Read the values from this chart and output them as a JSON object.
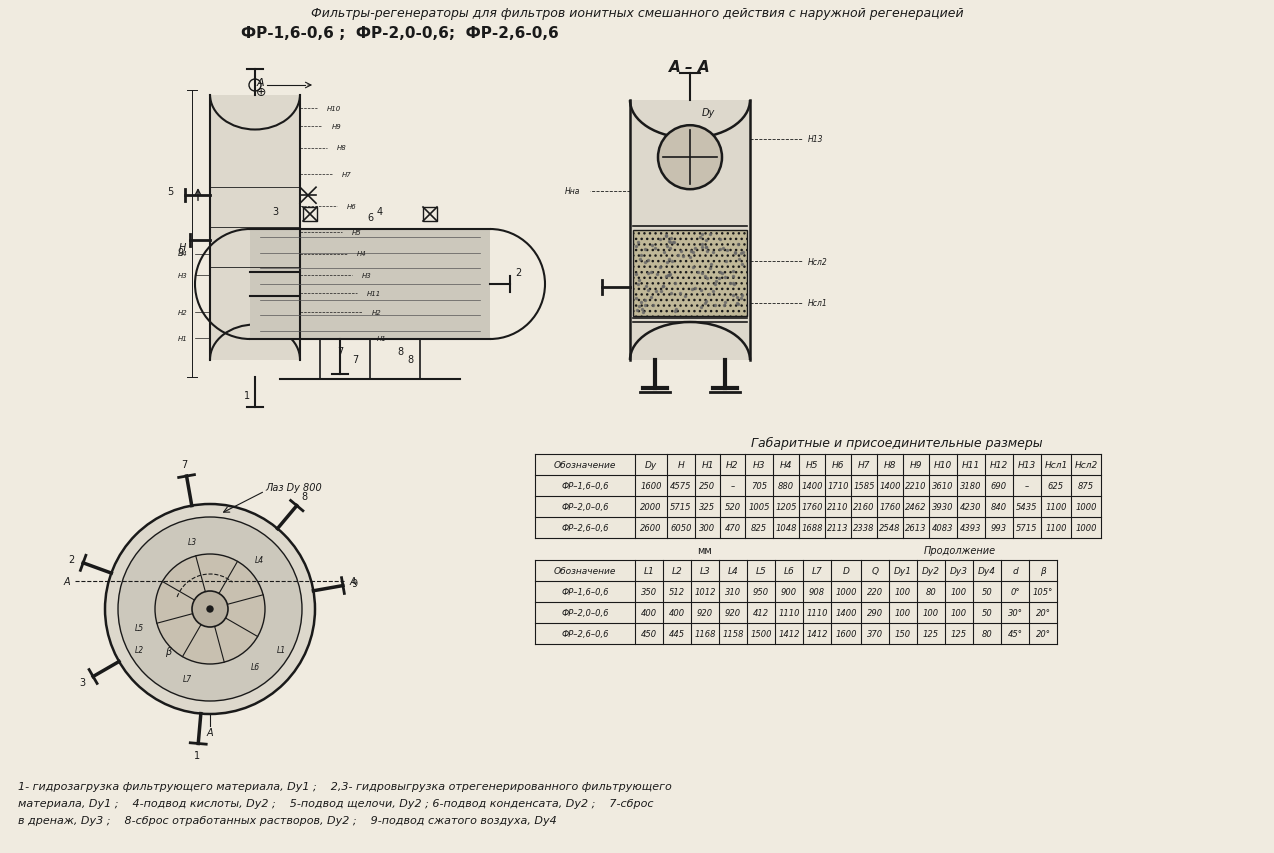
{
  "title_line1": "Фильтры-регенераторы для фильтров ионитных смешанного действия с наружной регенерацией",
  "title_line2": "ФР-1,6-0,6 ;  ФР-2,0-0,6;  ФР-2,6-0,6",
  "section_label": "А – А",
  "table1_title": "Габаритные и присоединительные размеры",
  "table1_headers": [
    "Обозначение",
    "Dy",
    "H",
    "H1",
    "H2",
    "H3",
    "H4",
    "H5",
    "H6",
    "H7",
    "H8",
    "H9",
    "H10",
    "H11",
    "H12",
    "H13",
    "Нсл1",
    "Нсл2"
  ],
  "table1_rows": [
    [
      "ФР–1,6–0,6",
      "1600",
      "4575",
      "250",
      "–",
      "705",
      "880",
      "1400",
      "1710",
      "1585",
      "1400",
      "2210",
      "3610",
      "3180",
      "690",
      "–",
      "625",
      "875"
    ],
    [
      "ФР–2,0–0,6",
      "2000",
      "5715",
      "325",
      "520",
      "1005",
      "1205",
      "1760",
      "2110",
      "2160",
      "1760",
      "2462",
      "3930",
      "4230",
      "840",
      "5435",
      "1100",
      "1000"
    ],
    [
      "ФР–2,6–0,6",
      "2600",
      "6050",
      "300",
      "470",
      "825",
      "1048",
      "1688",
      "2113",
      "2338",
      "2548",
      "2613",
      "4083",
      "4393",
      "993",
      "5715",
      "1100",
      "1000"
    ]
  ],
  "table2_mm_label": "мм",
  "table2_cont_label": "Продолжение",
  "table2_headers": [
    "Обозначение",
    "L1",
    "L2",
    "L3",
    "L4",
    "L5",
    "L6",
    "L7",
    "D",
    "Q",
    "Dy1",
    "Dy2",
    "Dy3",
    "Dy4",
    "d",
    "β"
  ],
  "table2_rows": [
    [
      "ФР–1,6–0,6",
      "350",
      "512",
      "1012",
      "310",
      "950",
      "900",
      "908",
      "1000",
      "220",
      "100",
      "80",
      "100",
      "50",
      "0°",
      "105°"
    ],
    [
      "ФР–2,0–0,6",
      "400",
      "400",
      "920",
      "920",
      "412",
      "1110",
      "1110",
      "1400",
      "290",
      "100",
      "100",
      "100",
      "50",
      "30°",
      "20°"
    ],
    [
      "ФР–2,6–0,6",
      "450",
      "445",
      "1168",
      "1158",
      "1500",
      "1412",
      "1412",
      "1600",
      "370",
      "150",
      "125",
      "125",
      "80",
      "45°",
      "20°"
    ]
  ],
  "footnote_lines": [
    "1- гидрозагрузка фильтрующего материала, Dy1 ;    2,3- гидровыгрузка отрегенерированного фильтрующего",
    "материала, Dy1 ;    4-подвод кислоты, Dy2 ;    5-подвод щелочи, Dy2 ; 6-подвод конденсата, Dy2 ;    7-сброс",
    "в дренаж, Dy3 ;    8-сброс отработанных растворов, Dy2 ;    9-подвод сжатого воздуха, Dy4"
  ],
  "bg_color": "#f0ebe0",
  "line_color": "#1a1a1a",
  "text_color": "#1a1a1a"
}
